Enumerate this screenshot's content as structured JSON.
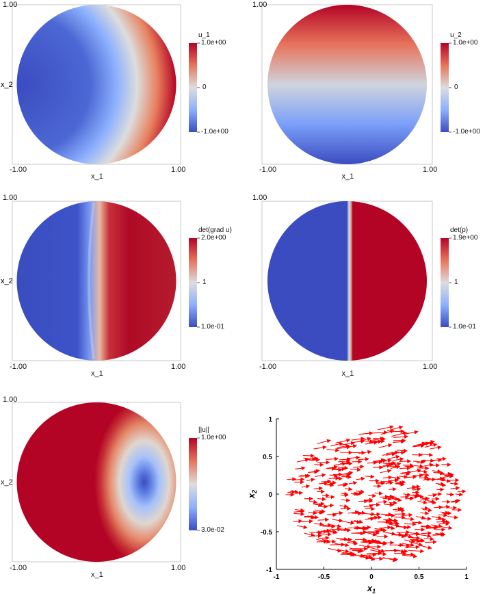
{
  "chart_data": [
    {
      "type": "heatmap",
      "title": "",
      "xlabel": "x_1",
      "ylabel": "x_2",
      "x_ticks": [
        "-1.00",
        "1.00"
      ],
      "y_tick": "1.00",
      "colorbar": {
        "title": "u_1",
        "max_label": "1.0e+00",
        "mid_label": "0",
        "min_label": "-1.0e+00",
        "min": -1.0,
        "max": 1.0
      },
      "pattern": "u1"
    },
    {
      "type": "heatmap",
      "title": "",
      "xlabel": "x_1",
      "ylabel": "x_2",
      "x_ticks": [
        "-1.00",
        "1.00"
      ],
      "y_tick": "1.00",
      "colorbar": {
        "title": "u_2",
        "max_label": "1.0e+00",
        "mid_label": "0",
        "min_label": "-1.0e+00",
        "min": -1.0,
        "max": 1.0
      },
      "pattern": "u2"
    },
    {
      "type": "heatmap",
      "title": "",
      "xlabel": "x_1",
      "ylabel": "x_2",
      "x_ticks": [
        "-1.00",
        "1.00"
      ],
      "y_tick": "1.00",
      "colorbar": {
        "title": "det(grad u)",
        "max_label": "2.0e+00",
        "mid_label": "1",
        "min_label": "1.0e-01",
        "min": 0.1,
        "max": 2.0
      },
      "pattern": "detgrad"
    },
    {
      "type": "heatmap",
      "title": "",
      "xlabel": "x_1",
      "ylabel": "x_2",
      "x_ticks": [
        "-1.00",
        "1.00"
      ],
      "y_tick": "1.00",
      "colorbar": {
        "title": "det(p)",
        "max_label": "1.9e+00",
        "mid_label": "1",
        "min_label": "1.0e-01",
        "min": 0.1,
        "max": 1.9
      },
      "pattern": "detp"
    },
    {
      "type": "heatmap",
      "title": "",
      "xlabel": "x_1",
      "ylabel": "x_2",
      "x_ticks": [
        "-1.00",
        "1.00"
      ],
      "y_tick": "1.00",
      "colorbar": {
        "title": "||u||",
        "max_label": "1.0e+00",
        "min_label": "3.0e-02",
        "min": 0.03,
        "max": 1.0
      },
      "pattern": "norm"
    },
    {
      "type": "quiver",
      "title": "",
      "xlabel": "x",
      "xlabel_sub": "1",
      "ylabel": "x",
      "ylabel_sub": "2",
      "xlim": [
        -1,
        1
      ],
      "ylim": [
        -1,
        1
      ],
      "xticks": [
        "-1",
        "-0.5",
        "0",
        "0.5",
        "1"
      ],
      "yticks": [
        "1",
        "0.5",
        "0",
        "-0.5",
        "-1"
      ],
      "arrow_color": "#ff0000",
      "domain": "unit-disk"
    }
  ],
  "colors": {
    "cold": "#3b4cc0",
    "neutral": "#dddddd",
    "warm": "#b40426",
    "arrow": "#ff0000"
  }
}
